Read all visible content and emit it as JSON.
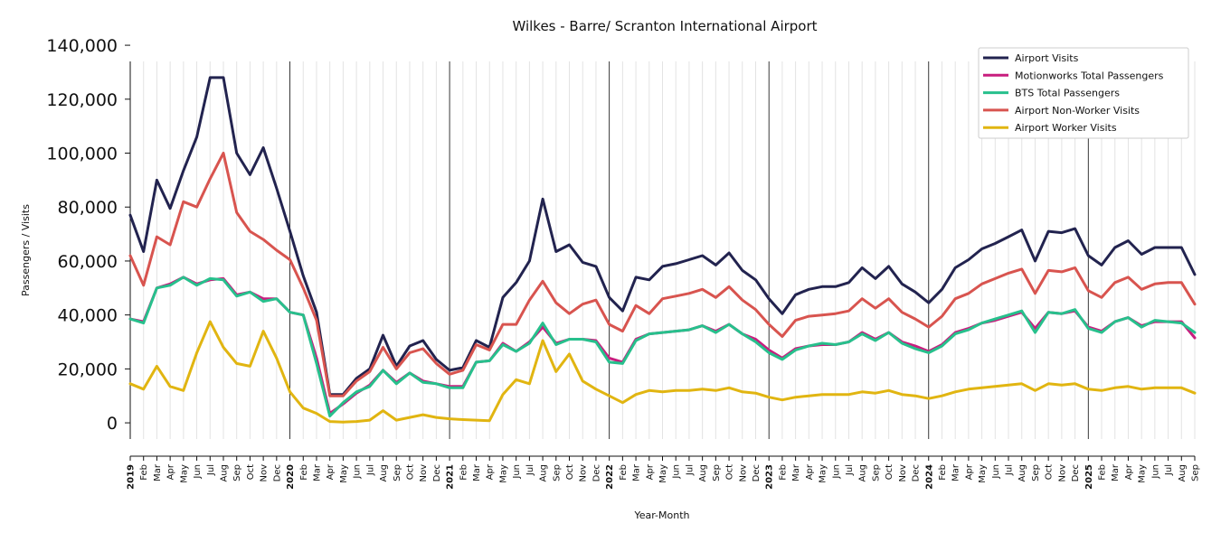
{
  "chart_data": {
    "type": "line",
    "title": "Wilkes - Barre/ Scranton International Airport",
    "xlabel": "Year-Month",
    "ylabel": "Passengers / Visits",
    "ylim": [
      -6000,
      134000
    ],
    "yticks": [
      0,
      20000,
      40000,
      60000,
      80000,
      100000,
      120000,
      140000
    ],
    "ytick_labels": [
      "0",
      "20,000",
      "40,000",
      "60,000",
      "80,000",
      "100,000",
      "120,000",
      "140,000"
    ],
    "x": [
      "2019-01",
      "2019-02",
      "2019-03",
      "2019-04",
      "2019-05",
      "2019-06",
      "2019-07",
      "2019-08",
      "2019-09",
      "2019-10",
      "2019-11",
      "2019-12",
      "2020-01",
      "2020-02",
      "2020-03",
      "2020-04",
      "2020-05",
      "2020-06",
      "2020-07",
      "2020-08",
      "2020-09",
      "2020-10",
      "2020-11",
      "2020-12",
      "2021-01",
      "2021-02",
      "2021-03",
      "2021-04",
      "2021-05",
      "2021-06",
      "2021-07",
      "2021-08",
      "2021-09",
      "2021-10",
      "2021-11",
      "2021-12",
      "2022-01",
      "2022-02",
      "2022-03",
      "2022-04",
      "2022-05",
      "2022-06",
      "2022-07",
      "2022-08",
      "2022-09",
      "2022-10",
      "2022-11",
      "2022-12",
      "2023-01",
      "2023-02",
      "2023-03",
      "2023-04",
      "2023-05",
      "2023-06",
      "2023-07",
      "2023-08",
      "2023-09",
      "2023-10",
      "2023-11",
      "2023-12",
      "2024-01",
      "2024-02",
      "2024-03",
      "2024-04",
      "2024-05",
      "2024-06",
      "2024-07",
      "2024-08",
      "2024-09",
      "2024-10",
      "2024-11",
      "2024-12",
      "2025-01",
      "2025-02",
      "2025-03",
      "2025-04",
      "2025-05",
      "2025-06",
      "2025-07",
      "2025-08",
      "2025-09"
    ],
    "x_tick_labels": [
      "2019",
      "Feb",
      "Mar",
      "Apr",
      "May",
      "Jun",
      "Jul",
      "Aug",
      "Sep",
      "Oct",
      "Nov",
      "Dec",
      "2020",
      "Feb",
      "Mar",
      "Apr",
      "May",
      "Jun",
      "Jul",
      "Aug",
      "Sep",
      "Oct",
      "Nov",
      "Dec",
      "2021",
      "Feb",
      "Mar",
      "Apr",
      "May",
      "Jun",
      "Jul",
      "Aug",
      "Sep",
      "Oct",
      "Nov",
      "Dec",
      "2022",
      "Feb",
      "Mar",
      "Apr",
      "May",
      "Jun",
      "Jul",
      "Aug",
      "Sep",
      "Oct",
      "Nov",
      "Dec",
      "2023",
      "Feb",
      "Mar",
      "Apr",
      "May",
      "Jun",
      "Jul",
      "Aug",
      "Sep",
      "Oct",
      "Nov",
      "Dec",
      "2024",
      "Feb",
      "Mar",
      "Apr",
      "May",
      "Jun",
      "Jul",
      "Aug",
      "Sep",
      "Oct",
      "Nov",
      "Dec",
      "2025",
      "Feb",
      "Mar",
      "Apr",
      "May",
      "Jun",
      "Jul",
      "Aug",
      "Sep"
    ],
    "grid": "vertical month lines, darker at year boundaries",
    "legend_position": "top-right",
    "series": [
      {
        "name": "Airport Visits",
        "color": "#22234f",
        "values": [
          77000,
          63500,
          90000,
          79500,
          93500,
          106000,
          128000,
          128000,
          100000,
          92000,
          102000,
          87000,
          71000,
          54500,
          41000,
          10500,
          10500,
          16500,
          20000,
          32500,
          21000,
          28500,
          30500,
          23500,
          19500,
          20500,
          30500,
          28000,
          46500,
          52000,
          60000,
          83000,
          63500,
          66000,
          59500,
          58000,
          46500,
          41500,
          54000,
          53000,
          58000,
          59000,
          60500,
          62000,
          58500,
          63000,
          56500,
          53000,
          46000,
          40500,
          47500,
          49500,
          50500,
          50500,
          52000,
          57500,
          53500,
          58000,
          51500,
          48500,
          44500,
          49500,
          57500,
          60500,
          64500,
          66500,
          69000,
          71500,
          60000,
          71000,
          70500,
          72000,
          62000,
          58500,
          65000,
          67500,
          62500,
          65000,
          65000,
          65000,
          55000
        ]
      },
      {
        "name": "Motionworks Total Passengers",
        "color": "#c81d7e",
        "values": [
          38500,
          37500,
          50000,
          51500,
          54000,
          51500,
          53000,
          53500,
          47500,
          48500,
          46000,
          46000,
          41000,
          40000,
          24000,
          3500,
          7000,
          11000,
          14000,
          19500,
          15000,
          18500,
          15500,
          14500,
          13500,
          13500,
          22500,
          23000,
          29500,
          26500,
          30000,
          35500,
          29500,
          31000,
          31000,
          30500,
          24000,
          22500,
          31000,
          33000,
          33500,
          34000,
          34500,
          36000,
          34000,
          36500,
          33000,
          31000,
          27000,
          24000,
          27500,
          28500,
          29000,
          29000,
          30000,
          33500,
          31000,
          33500,
          30000,
          28500,
          26500,
          29000,
          33500,
          35000,
          37000,
          38000,
          39500,
          41000,
          35000,
          41000,
          40500,
          41500,
          35500,
          34000,
          37500,
          39000,
          36000,
          37500,
          37500,
          37500,
          31500
        ]
      },
      {
        "name": "BTS Total Passengers",
        "color": "#27c08c",
        "values": [
          38500,
          37000,
          50000,
          51000,
          54000,
          51000,
          53500,
          53000,
          47000,
          48500,
          45000,
          46000,
          41000,
          40000,
          22000,
          2500,
          7500,
          11500,
          13500,
          19500,
          14500,
          18500,
          15000,
          14500,
          13000,
          13000,
          22500,
          23000,
          29000,
          26500,
          29500,
          37000,
          29000,
          31000,
          31000,
          30000,
          22500,
          22000,
          30500,
          33000,
          33500,
          34000,
          34500,
          36000,
          33500,
          36500,
          33000,
          30000,
          26000,
          23500,
          27000,
          28500,
          29500,
          29000,
          30000,
          33000,
          30500,
          33500,
          29500,
          27500,
          26000,
          28500,
          33000,
          34500,
          37000,
          38500,
          40000,
          41500,
          33500,
          41000,
          40500,
          42000,
          35000,
          33500,
          37500,
          39000,
          35500,
          38000,
          37500,
          37000,
          33500
        ]
      },
      {
        "name": "Airport Non-Worker Visits",
        "color": "#d8544f",
        "values": [
          62000,
          51000,
          69000,
          66000,
          82000,
          80000,
          90500,
          100000,
          78000,
          71000,
          68000,
          64000,
          60500,
          50000,
          38000,
          10000,
          10000,
          15500,
          19000,
          28000,
          20000,
          26000,
          27500,
          22000,
          18000,
          19500,
          29000,
          27000,
          36500,
          36500,
          45500,
          52500,
          44500,
          40500,
          44000,
          45500,
          36500,
          34000,
          43500,
          40500,
          46000,
          47000,
          48000,
          49500,
          46500,
          50500,
          45500,
          42000,
          36500,
          32000,
          38000,
          39500,
          40000,
          40500,
          41500,
          46000,
          42500,
          46000,
          41000,
          38500,
          35500,
          39500,
          46000,
          48000,
          51500,
          53500,
          55500,
          57000,
          48000,
          56500,
          56000,
          57500,
          49000,
          46500,
          52000,
          54000,
          49500,
          51500,
          52000,
          52000,
          44000
        ]
      },
      {
        "name": "Airport Worker Visits",
        "color": "#e1b511",
        "values": [
          14500,
          12500,
          21000,
          13500,
          12000,
          26000,
          37500,
          28000,
          22000,
          21000,
          34000,
          24000,
          11500,
          5500,
          3500,
          500,
          300,
          500,
          1000,
          4500,
          1000,
          2000,
          3000,
          2000,
          1500,
          1200,
          1000,
          800,
          10500,
          16000,
          14500,
          30500,
          19000,
          25500,
          15500,
          12500,
          10000,
          7500,
          10500,
          12000,
          11500,
          12000,
          12000,
          12500,
          12000,
          13000,
          11500,
          11000,
          9500,
          8500,
          9500,
          10000,
          10500,
          10500,
          10500,
          11500,
          11000,
          12000,
          10500,
          10000,
          9000,
          10000,
          11500,
          12500,
          13000,
          13500,
          14000,
          14500,
          12000,
          14500,
          14000,
          14500,
          12500,
          12000,
          13000,
          13500,
          12500,
          13000,
          13000,
          13000,
          11000
        ]
      }
    ]
  }
}
